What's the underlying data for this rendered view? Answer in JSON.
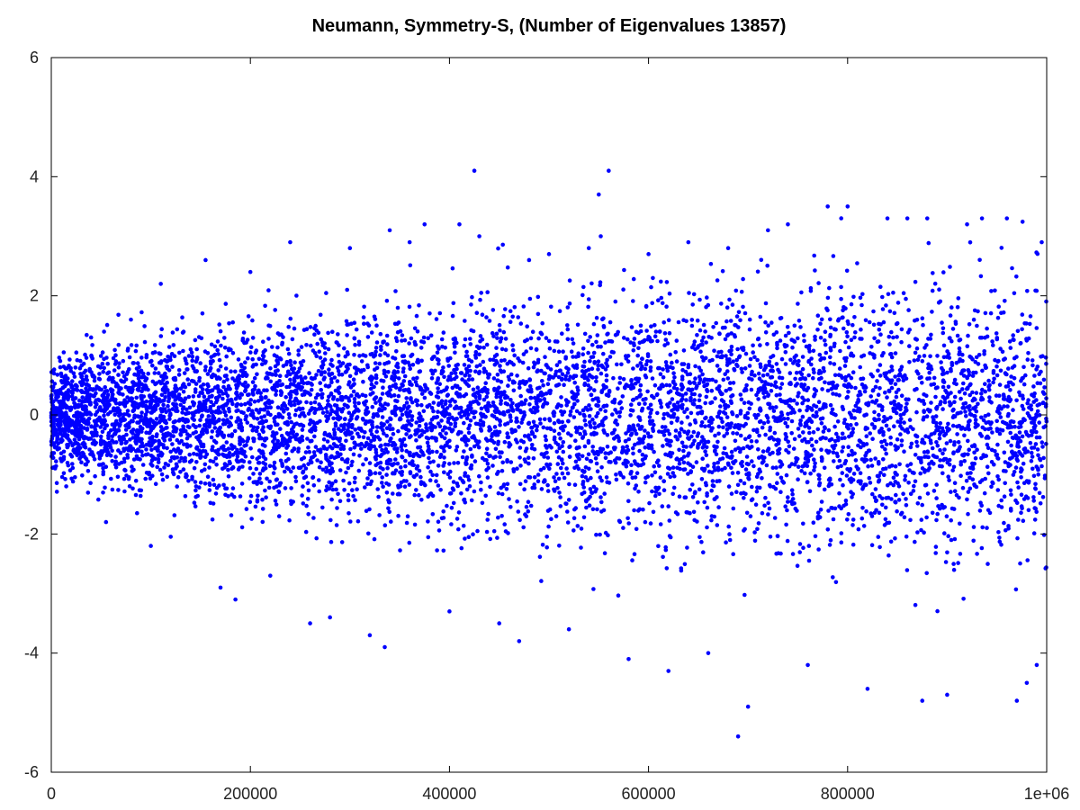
{
  "chart_data": {
    "type": "scatter",
    "title": "Neumann, Symmetry-S, (Number of Eigenvalues 13857)",
    "xlabel": "",
    "ylabel": "",
    "xlim": [
      0,
      1000000
    ],
    "ylim": [
      -6,
      6
    ],
    "x_ticks": [
      0,
      200000,
      400000,
      600000,
      800000,
      1000000
    ],
    "x_tick_labels": [
      "0",
      "200000",
      "400000",
      "600000",
      "800000",
      "1e+06"
    ],
    "y_ticks": [
      -6,
      -4,
      -2,
      0,
      2,
      4,
      6
    ],
    "y_tick_labels": [
      "-6",
      "-4",
      "-2",
      "0",
      "2",
      "4",
      "6"
    ],
    "grid": false,
    "legend": "none",
    "series": [
      {
        "color": "#0000ff",
        "point_count": 13857,
        "x": [
          1000,
          5000,
          9000,
          15000,
          20000,
          30000,
          40000,
          55000,
          65000,
          80000,
          100000,
          110000,
          125000,
          140000,
          155000,
          170000,
          185000,
          200000,
          220000,
          240000,
          260000,
          280000,
          300000,
          320000,
          335000,
          340000,
          360000,
          375000,
          400000,
          410000,
          425000,
          430000,
          450000,
          470000,
          480000,
          500000,
          520000,
          540000,
          550000,
          552000,
          560000,
          580000,
          600000,
          620000,
          640000,
          660000,
          680000,
          690000,
          700000,
          720000,
          740000,
          760000,
          780000,
          800000,
          820000,
          840000,
          860000,
          875000,
          880000,
          900000,
          920000,
          935000,
          960000,
          970000,
          980000,
          990000,
          995000
        ],
        "y": [
          0.1,
          -0.3,
          0.8,
          -1.2,
          0.5,
          -0.7,
          1.3,
          -1.8,
          0.9,
          1.6,
          -2.2,
          2.2,
          -0.9,
          1.1,
          2.6,
          -2.9,
          -3.1,
          2.4,
          -2.7,
          2.9,
          -3.5,
          -3.4,
          2.8,
          -3.7,
          -3.9,
          3.1,
          2.9,
          3.2,
          -3.3,
          3.2,
          4.1,
          3.0,
          -3.5,
          -3.8,
          2.6,
          2.7,
          -3.6,
          2.8,
          3.7,
          3.0,
          4.1,
          -4.1,
          2.7,
          -4.3,
          2.9,
          -4.0,
          2.8,
          -5.4,
          -4.9,
          3.1,
          3.2,
          -4.2,
          3.5,
          3.5,
          -4.6,
          3.3,
          3.3,
          -4.8,
          3.3,
          -4.7,
          3.2,
          3.3,
          3.3,
          -4.8,
          -4.5,
          -4.2,
          2.9
        ]
      }
    ]
  }
}
